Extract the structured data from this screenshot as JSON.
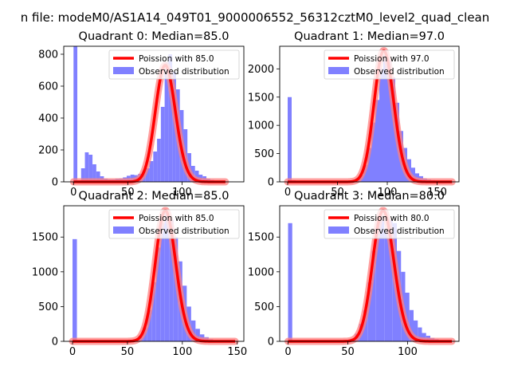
{
  "figure": {
    "suptitle": "n file: modeM0/AS1A14_049T01_9000006552_56312cztM0_level2_quad_clean"
  },
  "style": {
    "bar_color": "#8080ff",
    "line_color": "#ff0000",
    "line_alpha_color": "#ff8080"
  },
  "chart_data": [
    {
      "type": "bar",
      "title": "Quadrant 0: Median=85.0",
      "median": 85.0,
      "xlim": [
        -9,
        157
      ],
      "ylim": [
        0,
        850
      ],
      "xticks": [
        0,
        50,
        100
      ],
      "yticks": [
        0,
        200,
        400,
        600,
        800
      ],
      "bin_width": 3.5,
      "bins": [
        [
          0,
          850
        ],
        [
          3.5,
          10
        ],
        [
          7,
          85
        ],
        [
          10.5,
          185
        ],
        [
          14,
          170
        ],
        [
          17.5,
          110
        ],
        [
          21,
          65
        ],
        [
          24.5,
          35
        ],
        [
          28,
          20
        ],
        [
          31.5,
          15
        ],
        [
          35,
          15
        ],
        [
          38.5,
          20
        ],
        [
          42,
          22
        ],
        [
          45.5,
          28
        ],
        [
          49,
          38
        ],
        [
          52.5,
          45
        ],
        [
          56,
          42
        ],
        [
          59.5,
          50
        ],
        [
          63,
          65
        ],
        [
          66.5,
          85
        ],
        [
          70,
          130
        ],
        [
          73.5,
          190
        ],
        [
          77,
          270
        ],
        [
          80.5,
          470
        ],
        [
          84,
          750
        ],
        [
          87.5,
          800
        ],
        [
          91,
          690
        ],
        [
          94.5,
          580
        ],
        [
          98,
          450
        ],
        [
          101.5,
          330
        ],
        [
          105,
          180
        ],
        [
          108.5,
          100
        ],
        [
          112,
          70
        ],
        [
          115.5,
          45
        ],
        [
          119,
          35
        ],
        [
          122.5,
          20
        ],
        [
          126,
          12
        ],
        [
          129.5,
          8
        ],
        [
          133,
          5
        ],
        [
          136.5,
          3
        ],
        [
          140,
          2
        ],
        [
          143.5,
          1
        ]
      ],
      "legend": [
        {
          "label": "Poission with 85.0",
          "kind": "line"
        },
        {
          "label": "Observed distribution",
          "kind": "bar"
        }
      ],
      "poisson": {
        "mu": 85.0,
        "amplitude": 730,
        "x_range": [
          0,
          140
        ]
      }
    },
    {
      "type": "bar",
      "title": "Quadrant 1: Median=97.0",
      "median": 97.0,
      "xlim": [
        -8,
        172
      ],
      "ylim": [
        0,
        2400
      ],
      "xticks": [
        0,
        50,
        100,
        150
      ],
      "yticks": [
        0,
        500,
        1000,
        1500,
        2000
      ],
      "bin_width": 4,
      "bins": [
        [
          0,
          1500
        ],
        [
          4,
          30
        ],
        [
          8,
          20
        ],
        [
          12,
          20
        ],
        [
          16,
          20
        ],
        [
          20,
          20
        ],
        [
          24,
          20
        ],
        [
          28,
          20
        ],
        [
          32,
          20
        ],
        [
          36,
          20
        ],
        [
          40,
          20
        ],
        [
          44,
          20
        ],
        [
          48,
          20
        ],
        [
          52,
          20
        ],
        [
          56,
          20
        ],
        [
          60,
          20
        ],
        [
          64,
          30
        ],
        [
          68,
          60
        ],
        [
          72,
          120
        ],
        [
          76,
          300
        ],
        [
          80,
          600
        ],
        [
          84,
          1050
        ],
        [
          88,
          1450
        ],
        [
          92,
          2000
        ],
        [
          96,
          2250
        ],
        [
          100,
          2150
        ],
        [
          104,
          1850
        ],
        [
          108,
          1400
        ],
        [
          112,
          900
        ],
        [
          116,
          600
        ],
        [
          120,
          400
        ],
        [
          124,
          250
        ],
        [
          128,
          150
        ],
        [
          132,
          100
        ],
        [
          136,
          60
        ],
        [
          140,
          40
        ],
        [
          144,
          30
        ],
        [
          148,
          25
        ],
        [
          152,
          20
        ],
        [
          156,
          20
        ],
        [
          160,
          20
        ]
      ],
      "legend": [
        {
          "label": "Poission with 97.0",
          "kind": "line"
        },
        {
          "label": "Observed distribution",
          "kind": "bar"
        }
      ],
      "poisson": {
        "mu": 97.0,
        "amplitude": 2320,
        "x_range": [
          0,
          165
        ]
      }
    },
    {
      "type": "bar",
      "title": "Quadrant 2: Median=85.0",
      "median": 85.0,
      "xlim": [
        -8,
        156
      ],
      "ylim": [
        0,
        1950
      ],
      "xticks": [
        0,
        50,
        100,
        150
      ],
      "yticks": [
        0,
        500,
        1000,
        1500
      ],
      "bin_width": 4,
      "bins": [
        [
          0,
          1470
        ],
        [
          4,
          5
        ],
        [
          8,
          5
        ],
        [
          12,
          5
        ],
        [
          16,
          5
        ],
        [
          20,
          5
        ],
        [
          24,
          5
        ],
        [
          28,
          5
        ],
        [
          32,
          5
        ],
        [
          36,
          5
        ],
        [
          40,
          5
        ],
        [
          44,
          5
        ],
        [
          48,
          5
        ],
        [
          52,
          10
        ],
        [
          56,
          30
        ],
        [
          60,
          80
        ],
        [
          64,
          200
        ],
        [
          68,
          450
        ],
        [
          72,
          850
        ],
        [
          76,
          1350
        ],
        [
          80,
          1700
        ],
        [
          84,
          1850
        ],
        [
          88,
          1750
        ],
        [
          92,
          1500
        ],
        [
          96,
          1150
        ],
        [
          100,
          800
        ],
        [
          104,
          500
        ],
        [
          108,
          300
        ],
        [
          112,
          180
        ],
        [
          116,
          100
        ],
        [
          120,
          60
        ],
        [
          124,
          30
        ],
        [
          128,
          15
        ],
        [
          132,
          8
        ],
        [
          136,
          4
        ],
        [
          140,
          2
        ],
        [
          144,
          1
        ]
      ],
      "legend": [
        {
          "label": "Poission with 85.0",
          "kind": "line"
        },
        {
          "label": "Observed distribution",
          "kind": "bar"
        }
      ],
      "poisson": {
        "mu": 85.0,
        "amplitude": 1880,
        "x_range": [
          0,
          148
        ]
      }
    },
    {
      "type": "bar",
      "title": "Quadrant 3: Median=80.0",
      "median": 80.0,
      "xlim": [
        -7,
        143
      ],
      "ylim": [
        0,
        1950
      ],
      "xticks": [
        0,
        50,
        100
      ],
      "yticks": [
        0,
        500,
        1000,
        1500
      ],
      "bin_width": 3.5,
      "bins": [
        [
          0,
          1700
        ],
        [
          3.5,
          5
        ],
        [
          7,
          5
        ],
        [
          10.5,
          5
        ],
        [
          14,
          5
        ],
        [
          17.5,
          5
        ],
        [
          21,
          5
        ],
        [
          24.5,
          5
        ],
        [
          28,
          5
        ],
        [
          31.5,
          5
        ],
        [
          35,
          5
        ],
        [
          38.5,
          5
        ],
        [
          42,
          5
        ],
        [
          45.5,
          5
        ],
        [
          49,
          10
        ],
        [
          52.5,
          40
        ],
        [
          56,
          110
        ],
        [
          59.5,
          250
        ],
        [
          63,
          450
        ],
        [
          66.5,
          850
        ],
        [
          70,
          1300
        ],
        [
          73.5,
          1700
        ],
        [
          77,
          1800
        ],
        [
          80.5,
          1600
        ],
        [
          84,
          1750
        ],
        [
          87.5,
          1700
        ],
        [
          91,
          1300
        ],
        [
          94.5,
          1000
        ],
        [
          98,
          700
        ],
        [
          101.5,
          450
        ],
        [
          105,
          300
        ],
        [
          108.5,
          200
        ],
        [
          112,
          120
        ],
        [
          115.5,
          80
        ],
        [
          119,
          50
        ],
        [
          122.5,
          30
        ],
        [
          126,
          15
        ],
        [
          129.5,
          8
        ],
        [
          133,
          5
        ]
      ],
      "legend": [
        {
          "label": "Poission with 80.0",
          "kind": "line"
        },
        {
          "label": "Observed distribution",
          "kind": "bar"
        }
      ],
      "poisson": {
        "mu": 80.0,
        "amplitude": 1880,
        "x_range": [
          0,
          137
        ]
      }
    }
  ]
}
